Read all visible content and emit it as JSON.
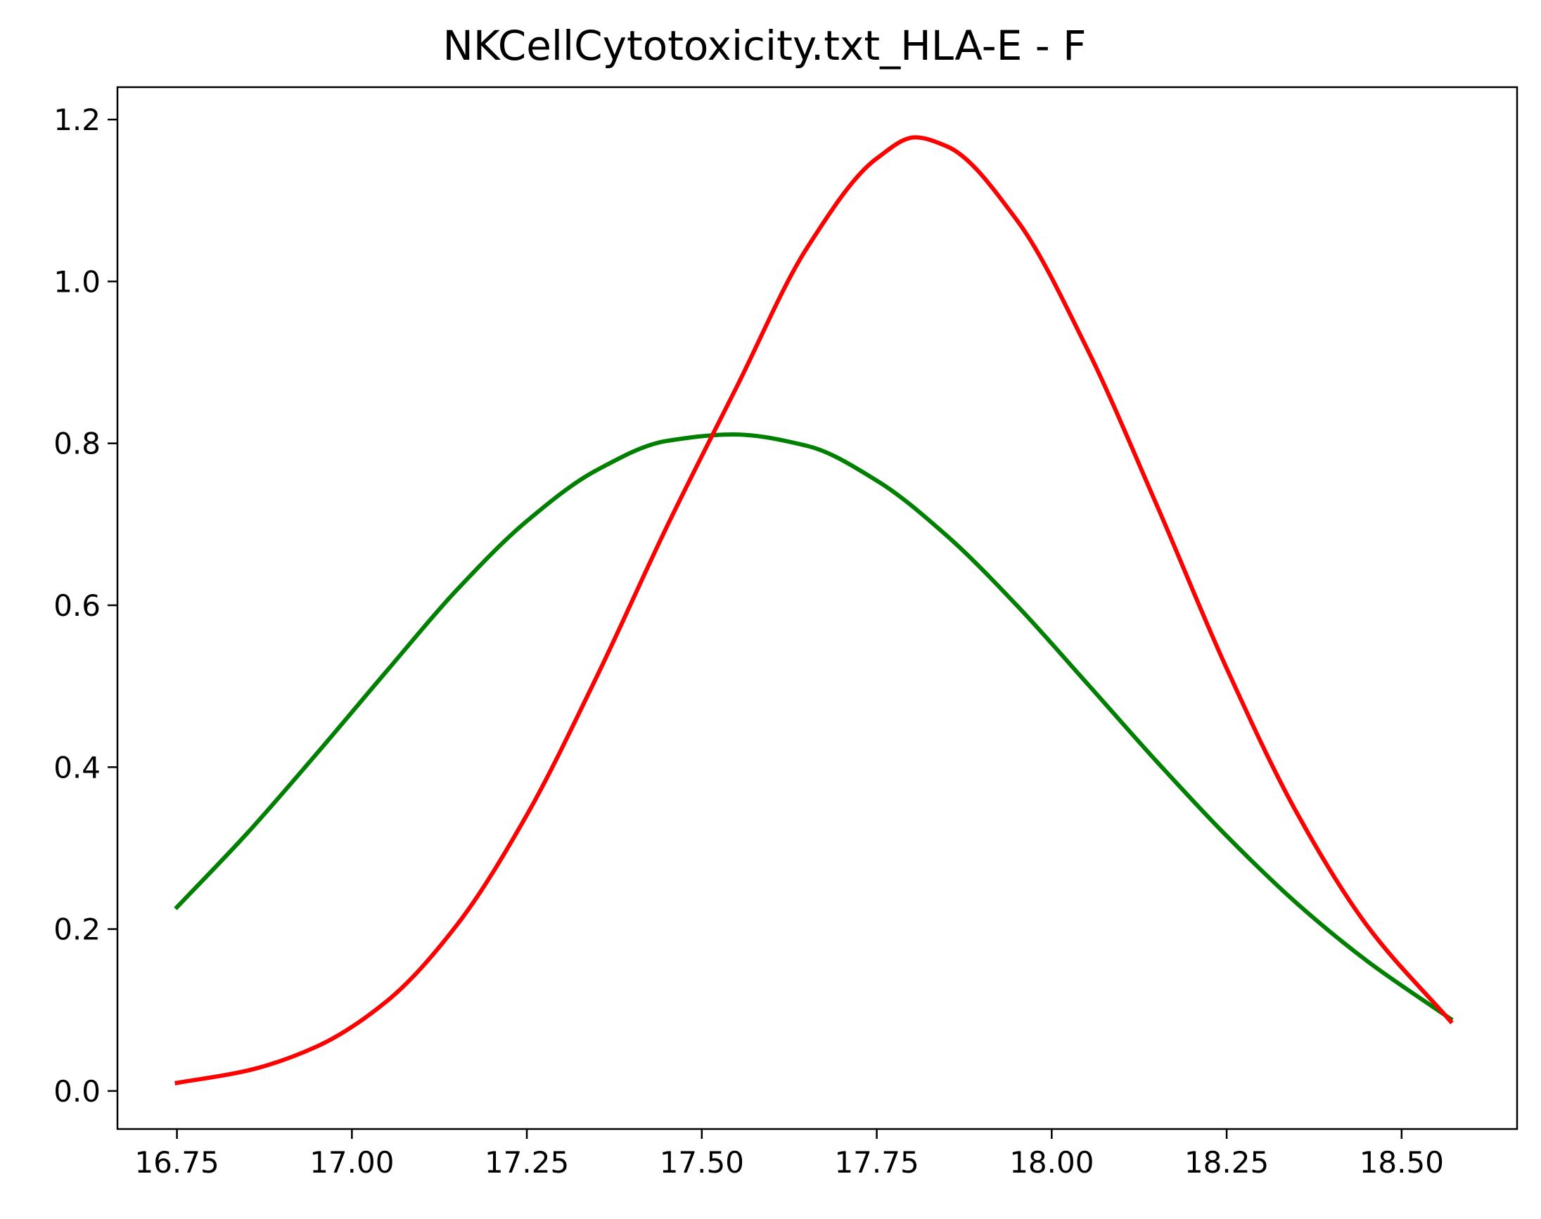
{
  "chart_data": {
    "type": "line",
    "title": "NKCellCytotoxicity.txt_HLA-E - F",
    "xlabel": "",
    "ylabel": "",
    "xlim": [
      16.665,
      18.665
    ],
    "ylim": [
      -0.047,
      1.24
    ],
    "grid": false,
    "legend": "none",
    "xticks": [
      16.75,
      17.0,
      17.25,
      17.5,
      17.75,
      18.0,
      18.25,
      18.5
    ],
    "xtick_labels": [
      "16.75",
      "17.00",
      "17.25",
      "17.50",
      "17.75",
      "18.00",
      "18.25",
      "18.50"
    ],
    "yticks": [
      0.0,
      0.2,
      0.4,
      0.6,
      0.8,
      1.0,
      1.2
    ],
    "ytick_labels": [
      "0.0",
      "0.2",
      "0.4",
      "0.6",
      "0.8",
      "1.0",
      "1.2"
    ],
    "series": [
      {
        "color": "#008000",
        "x": [
          16.75,
          16.85,
          16.95,
          17.05,
          17.15,
          17.25,
          17.35,
          17.45,
          17.545,
          17.65,
          17.75,
          17.85,
          17.95,
          18.05,
          18.15,
          18.25,
          18.35,
          18.45,
          18.57
        ],
        "y": [
          0.227,
          0.318,
          0.417,
          0.519,
          0.619,
          0.704,
          0.767,
          0.803,
          0.811,
          0.797,
          0.754,
          0.686,
          0.6,
          0.504,
          0.407,
          0.315,
          0.232,
          0.161,
          0.089
        ]
      },
      {
        "color": "#ff0000",
        "x": [
          16.75,
          16.85,
          16.95,
          17.05,
          17.15,
          17.25,
          17.35,
          17.45,
          17.55,
          17.65,
          17.75,
          17.805,
          17.85,
          17.95,
          18.05,
          18.15,
          18.25,
          18.35,
          18.45,
          18.57
        ],
        "y": [
          0.01,
          0.025,
          0.055,
          0.111,
          0.205,
          0.341,
          0.512,
          0.697,
          0.87,
          1.041,
          1.152,
          1.178,
          1.167,
          1.076,
          0.918,
          0.724,
          0.522,
          0.344,
          0.205,
          0.086
        ]
      }
    ]
  }
}
